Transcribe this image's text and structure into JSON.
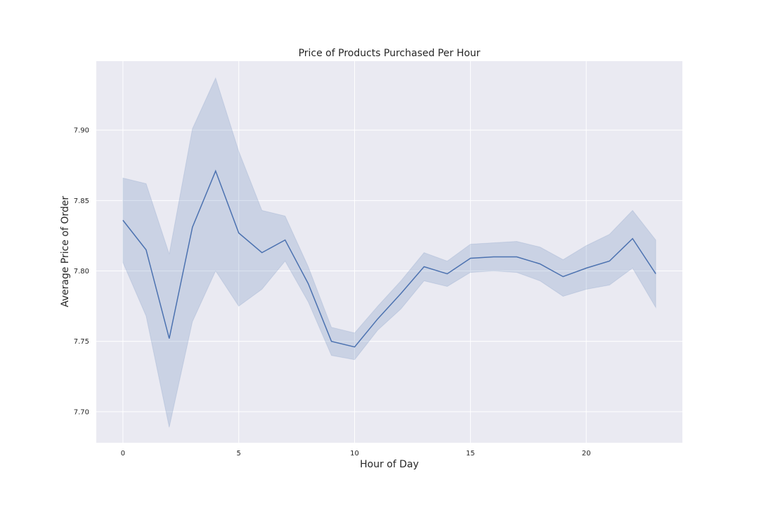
{
  "chart_data": {
    "type": "line",
    "title": "Price of Products Purchased Per Hour",
    "xlabel": "Hour of Day",
    "ylabel": "Average Price of Order",
    "xlim": [
      -1.15,
      24.15
    ],
    "ylim": [
      7.678,
      7.949
    ],
    "x_ticks": [
      0,
      5,
      10,
      15,
      20
    ],
    "y_ticks": [
      7.7,
      7.75,
      7.8,
      7.85,
      7.9
    ],
    "x_tick_labels": [
      "0",
      "5",
      "10",
      "15",
      "20"
    ],
    "y_tick_labels": [
      "7.70",
      "7.75",
      "7.80",
      "7.85",
      "7.90"
    ],
    "grid": true,
    "legend": "none",
    "colors": {
      "line": "#4c72b0",
      "band": "#4c72b0",
      "background": "#eaeaf2",
      "grid": "#ffffff"
    },
    "series": [
      {
        "x": [
          0,
          1,
          2,
          3,
          4,
          5,
          6,
          7,
          8,
          9,
          10,
          11,
          12,
          13,
          14,
          15,
          16,
          17,
          18,
          19,
          20,
          21,
          22,
          23
        ],
        "values": [
          7.836,
          7.815,
          7.752,
          7.831,
          7.871,
          7.827,
          7.813,
          7.822,
          7.791,
          7.75,
          7.746,
          7.766,
          7.784,
          7.803,
          7.798,
          7.809,
          7.81,
          7.81,
          7.805,
          7.796,
          7.802,
          7.807,
          7.823,
          7.798
        ],
        "ci_lower": [
          7.806,
          7.768,
          7.689,
          7.764,
          7.8,
          7.775,
          7.787,
          7.807,
          7.778,
          7.74,
          7.737,
          7.758,
          7.773,
          7.793,
          7.789,
          7.799,
          7.8,
          7.799,
          7.793,
          7.782,
          7.787,
          7.79,
          7.802,
          7.774
        ],
        "ci_upper": [
          7.866,
          7.862,
          7.812,
          7.901,
          7.937,
          7.885,
          7.843,
          7.839,
          7.803,
          7.76,
          7.756,
          7.775,
          7.793,
          7.813,
          7.807,
          7.819,
          7.82,
          7.821,
          7.817,
          7.808,
          7.818,
          7.826,
          7.843,
          7.822
        ]
      }
    ]
  }
}
